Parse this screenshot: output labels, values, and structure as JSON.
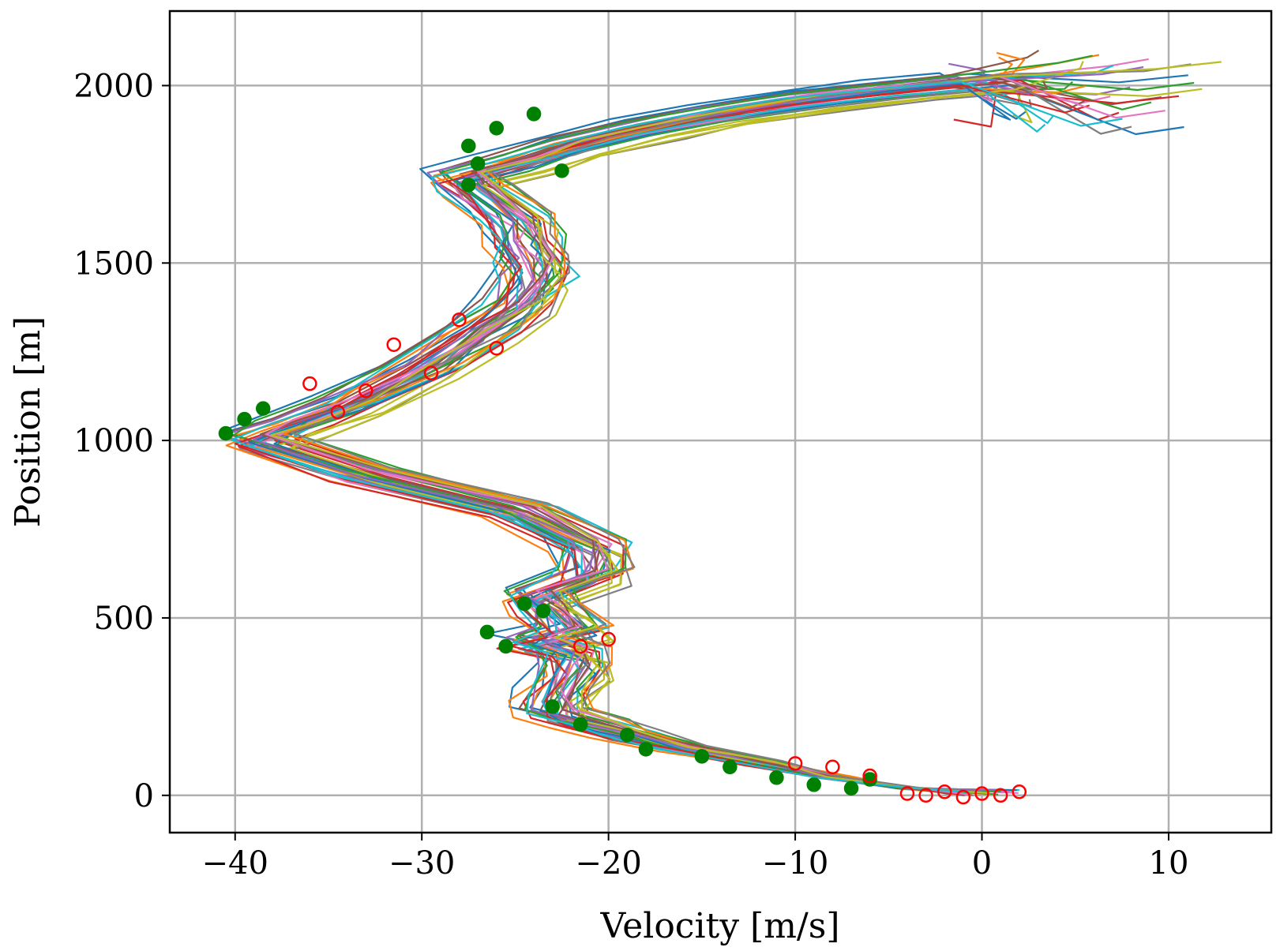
{
  "chart_data": {
    "type": "line",
    "title": "",
    "xlabel": "Velocity [m/s]",
    "ylabel": "Position [m]",
    "xlim": [
      -43.5,
      15.5
    ],
    "ylim": [
      -105,
      2210
    ],
    "xticks": [
      -40,
      -30,
      -20,
      -10,
      0,
      10
    ],
    "xtick_labels": [
      "−40",
      "−30",
      "−20",
      "−10",
      "0",
      "10"
    ],
    "yticks": [
      0,
      500,
      1000,
      1500,
      2000
    ],
    "ytick_labels": [
      "0",
      "500",
      "1000",
      "1500",
      "2000"
    ],
    "grid": true,
    "legend": "none",
    "series_count": 40,
    "color_cycle": [
      "#1f77b4",
      "#ff7f0e",
      "#2ca02c",
      "#d62728",
      "#9467bd",
      "#8c564b",
      "#e377c2",
      "#7f7f7f",
      "#bcbd22",
      "#17becf"
    ],
    "nominal_profile": {
      "position": [
        0,
        20,
        50,
        90,
        130,
        170,
        200,
        230,
        280,
        350,
        400,
        430,
        460,
        520,
        560,
        620,
        700,
        800,
        900,
        1000,
        1040,
        1100,
        1200,
        1300,
        1380,
        1450,
        1500,
        1560,
        1620,
        1700,
        1740,
        1780,
        1830,
        1880,
        1920,
        1960,
        1990,
        2010,
        2030
      ],
      "velocity": [
        0,
        -4,
        -8,
        -12,
        -16,
        -19,
        -21,
        -23,
        -23,
        -22,
        -22,
        -24,
        -22,
        -23,
        -24,
        -21,
        -21,
        -25,
        -33,
        -39,
        -37,
        -34,
        -30,
        -27,
        -25,
        -24,
        -24,
        -24.5,
        -25,
        -27,
        -28,
        -25,
        -22,
        -18,
        -14,
        -9,
        -4,
        0,
        3
      ]
    },
    "marker_series": [
      {
        "name": "green filled markers",
        "color": "#008000",
        "points": [
          [
            -40.5,
            1020
          ],
          [
            -39.5,
            1060
          ],
          [
            -38.5,
            1090
          ],
          [
            -27.5,
            1720
          ],
          [
            -27,
            1780
          ],
          [
            -27.5,
            1830
          ],
          [
            -26,
            1880
          ],
          [
            -24,
            1920
          ],
          [
            -22.5,
            1760
          ],
          [
            -26.5,
            460
          ],
          [
            -24.5,
            540
          ],
          [
            -23.5,
            520
          ],
          [
            -25.5,
            420
          ],
          [
            -23,
            250
          ],
          [
            -21.5,
            200
          ],
          [
            -19,
            170
          ],
          [
            -18,
            130
          ],
          [
            -15,
            110
          ],
          [
            -13.5,
            80
          ],
          [
            -11,
            50
          ],
          [
            -9,
            30
          ],
          [
            -7,
            20
          ],
          [
            -6,
            45
          ]
        ]
      },
      {
        "name": "red open markers",
        "color": "#ff0000",
        "points": [
          [
            -36,
            1160
          ],
          [
            -34.5,
            1080
          ],
          [
            -33,
            1140
          ],
          [
            -31.5,
            1270
          ],
          [
            -28,
            1340
          ],
          [
            -26,
            1260
          ],
          [
            -29.5,
            1190
          ],
          [
            -20,
            440
          ],
          [
            -21.5,
            420
          ],
          [
            -10,
            90
          ],
          [
            -8,
            80
          ],
          [
            -6,
            55
          ],
          [
            -4,
            5
          ],
          [
            -2,
            10
          ],
          [
            0,
            5
          ],
          [
            1,
            0
          ],
          [
            2,
            10
          ],
          [
            -1,
            -5
          ],
          [
            -3,
            0
          ]
        ]
      }
    ]
  }
}
